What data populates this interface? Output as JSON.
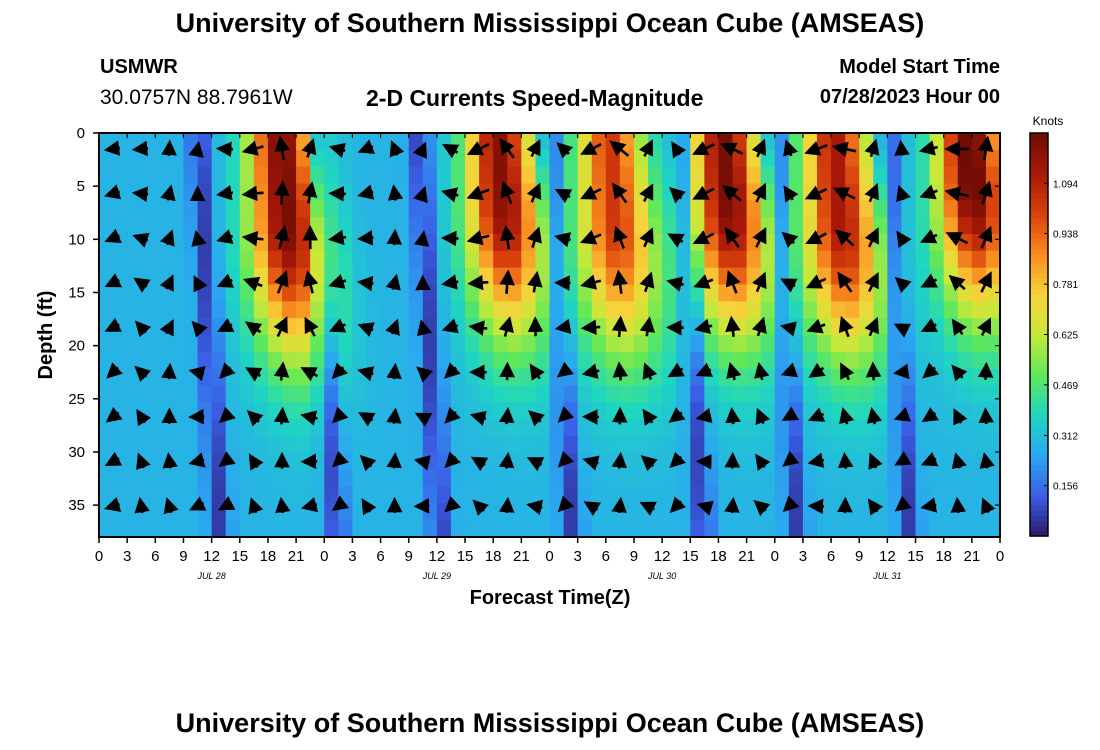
{
  "header": {
    "title": "University of Southern Mississippi Ocean Cube (AMSEAS)",
    "station": "USMWR",
    "coords": "30.0757N  88.7961W",
    "subtitle": "2-D Currents Speed-Magnitude",
    "start_label": "Model Start Time",
    "start_value": "07/28/2023 Hour 00"
  },
  "footer": {
    "title": "University of Southern Mississippi Ocean Cube (AMSEAS)"
  },
  "colors": {
    "ramp": [
      "#2a1a6b",
      "#3b5fe8",
      "#2aa8f0",
      "#1fd6c0",
      "#5fe85a",
      "#c8e83a",
      "#f8d23a",
      "#f88a1f",
      "#d8400c",
      "#a81808",
      "#6e0d04"
    ],
    "arrow": "#000000"
  },
  "chart_data": {
    "type": "heatmap",
    "title": "2-D Currents Speed-Magnitude",
    "xlabel": "Forecast Time(Z)",
    "ylabel": "Depth (ft)",
    "x_ticks": [
      "0",
      "3",
      "6",
      "9",
      "12",
      "15",
      "18",
      "21",
      "0",
      "3",
      "6",
      "9",
      "12",
      "15",
      "18",
      "21",
      "0",
      "3",
      "6",
      "9",
      "12",
      "15",
      "18",
      "21",
      "0",
      "3",
      "6",
      "9",
      "12",
      "15",
      "18",
      "21",
      "0"
    ],
    "x_tick_hours": [
      0,
      3,
      6,
      9,
      12,
      15,
      18,
      21,
      24,
      27,
      30,
      33,
      36,
      39,
      42,
      45,
      48,
      51,
      54,
      57,
      60,
      63,
      66,
      69,
      72,
      75,
      78,
      81,
      84,
      87,
      90,
      93,
      96
    ],
    "xlim": [
      0,
      96
    ],
    "date_labels": [
      {
        "label": "JUL 28",
        "hour": 12
      },
      {
        "label": "JUL 29",
        "hour": 36
      },
      {
        "label": "JUL 30",
        "hour": 60
      },
      {
        "label": "JUL 31",
        "hour": 84
      }
    ],
    "y_ticks": [
      0,
      5,
      10,
      15,
      20,
      25,
      30,
      35
    ],
    "ylim": [
      0,
      38
    ],
    "colorbar": {
      "label": "Knots",
      "ticks": [
        "1.094",
        "0.938",
        "0.781",
        "0.625",
        "0.469",
        "0.312",
        "0.156"
      ],
      "tick_values": [
        1.094,
        0.938,
        0.781,
        0.625,
        0.469,
        0.312,
        0.156
      ],
      "range": [
        0.0,
        1.25
      ]
    },
    "speed_peaks_knots": [
      {
        "hour": 20,
        "depth_ft": 8,
        "speed": 1.15
      },
      {
        "hour": 43,
        "depth_ft": 6,
        "speed": 1.12
      },
      {
        "hour": 55,
        "depth_ft": 8,
        "speed": 0.95
      },
      {
        "hour": 67,
        "depth_ft": 6,
        "speed": 1.15
      },
      {
        "hour": 79,
        "depth_ft": 8,
        "speed": 1.05
      },
      {
        "hour": 93,
        "depth_ft": 4,
        "speed": 1.2
      }
    ],
    "speed_minima_hours": [
      11.5,
      24,
      35,
      49,
      63,
      73,
      85
    ]
  }
}
